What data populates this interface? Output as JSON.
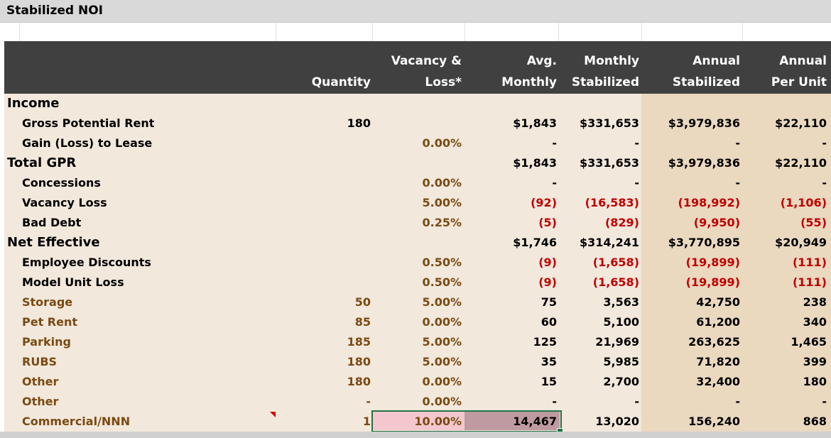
{
  "title": "Stabilized NOI",
  "headers": {
    "quantity": "Quantity",
    "vacancy_l1": "Vacancy &",
    "vacancy_l2": "Loss*",
    "avg_l1": "Avg.",
    "avg_l2": "Monthly",
    "monthly_l1": "Monthly",
    "monthly_l2": "Stabilized",
    "annual_l1": "Annual",
    "annual_l2": "Stabilized",
    "perunit_l1": "Annual",
    "perunit_l2": "Per Unit"
  },
  "rows": [
    {
      "label": "Income",
      "qty": "",
      "vac": "",
      "avg": "",
      "mon": "",
      "ann": "",
      "per": ""
    },
    {
      "label": "Gross Potential Rent",
      "qty": "180",
      "vac": "",
      "avg": "$1,843",
      "mon": "$331,653",
      "ann": "$3,979,836",
      "per": "$22,110"
    },
    {
      "label": "Gain (Loss) to Lease",
      "qty": "",
      "vac": "0.00%",
      "avg": "-",
      "mon": "-",
      "ann": "-",
      "per": "-"
    },
    {
      "label": "Total GPR",
      "qty": "",
      "vac": "",
      "avg": "$1,843",
      "mon": "$331,653",
      "ann": "$3,979,836",
      "per": "$22,110"
    },
    {
      "label": "Concessions",
      "qty": "",
      "vac": "0.00%",
      "avg": "-",
      "mon": "-",
      "ann": "-",
      "per": "-"
    },
    {
      "label": "Vacancy Loss",
      "qty": "",
      "vac": "5.00%",
      "avg": "(92)",
      "mon": "(16,583)",
      "ann": "(198,992)",
      "per": "(1,106)"
    },
    {
      "label": "Bad Debt",
      "qty": "",
      "vac": "0.25%",
      "avg": "(5)",
      "mon": "(829)",
      "ann": "(9,950)",
      "per": "(55)"
    },
    {
      "label": "Net Effective",
      "qty": "",
      "vac": "",
      "avg": "$1,746",
      "mon": "$314,241",
      "ann": "$3,770,895",
      "per": "$20,949"
    },
    {
      "label": "Employee Discounts",
      "qty": "",
      "vac": "0.50%",
      "avg": "(9)",
      "mon": "(1,658)",
      "ann": "(19,899)",
      "per": "(111)"
    },
    {
      "label": "Model Unit Loss",
      "qty": "",
      "vac": "0.50%",
      "avg": "(9)",
      "mon": "(1,658)",
      "ann": "(19,899)",
      "per": "(111)"
    },
    {
      "label": "Storage",
      "qty": "50",
      "vac": "5.00%",
      "avg": "75",
      "mon": "3,563",
      "ann": "42,750",
      "per": "238"
    },
    {
      "label": "Pet Rent",
      "qty": "85",
      "vac": "0.00%",
      "avg": "60",
      "mon": "5,100",
      "ann": "61,200",
      "per": "340"
    },
    {
      "label": "Parking",
      "qty": "185",
      "vac": "5.00%",
      "avg": "125",
      "mon": "21,969",
      "ann": "263,625",
      "per": "1,465"
    },
    {
      "label": "RUBS",
      "qty": "180",
      "vac": "5.00%",
      "avg": "35",
      "mon": "5,985",
      "ann": "71,820",
      "per": "399"
    },
    {
      "label": "Other",
      "qty": "180",
      "vac": "0.00%",
      "avg": "15",
      "mon": "2,700",
      "ann": "32,400",
      "per": "180"
    },
    {
      "label": "Other",
      "qty": "-",
      "vac": "0.00%",
      "avg": "-",
      "mon": "-",
      "ann": "-",
      "per": "-"
    },
    {
      "label": "Commercial/NNN",
      "qty": "1",
      "vac": "10.00%",
      "avg": "14,467",
      "mon": "13,020",
      "ann": "156,240",
      "per": "868"
    }
  ],
  "colors": {
    "header_bg": "#404040",
    "body_bg": "#f2e8dc",
    "annual_bg": "#ead8bf",
    "negative": "#c00000",
    "other_income": "#7a4a12",
    "selection": "#217346"
  }
}
